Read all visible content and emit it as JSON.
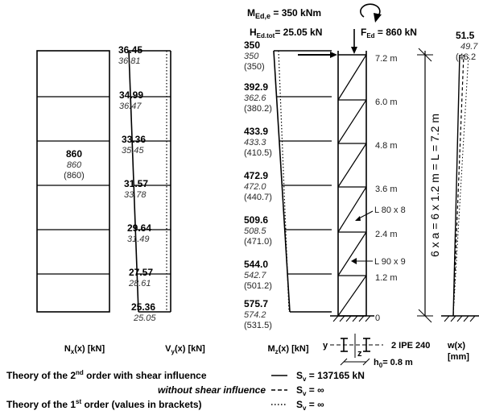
{
  "top_loads": {
    "moment_label": "M",
    "moment_sub": "Ed,e",
    "moment_value": " = 350 kNm",
    "h_label": "H",
    "h_sub": "Ed.tot",
    "h_value": "= 25.05 kN",
    "f_label": "F",
    "f_sub": "Ed",
    "f_value": " = 860 kN"
  },
  "normal_force": {
    "value_bold": "860",
    "value_italic": "860",
    "value_bracket": "(860)",
    "axis_label": "N",
    "axis_sub": "x",
    "axis_unit": "(x) [kN]"
  },
  "shear": {
    "axis_label": "V",
    "axis_sub": "y",
    "axis_unit": "(x) [kN]",
    "values": [
      {
        "bold": "36.45",
        "italic": "36.81"
      },
      {
        "bold": "34.99",
        "italic": "36.47"
      },
      {
        "bold": "33.36",
        "italic": "35.45"
      },
      {
        "bold": "31.57",
        "italic": "33.78"
      },
      {
        "bold": "29.64",
        "italic": "31.49"
      },
      {
        "bold": "27.57",
        "italic": "28.61"
      },
      {
        "bold": "25.36",
        "italic": "25.05"
      }
    ]
  },
  "moment": {
    "axis_label": "M",
    "axis_sub": "z",
    "axis_unit": "(x) [kN]",
    "values": [
      {
        "bold": "350",
        "italic": "350",
        "bracket": "(350)"
      },
      {
        "bold": "392.9",
        "italic": "362.6",
        "bracket": "(380.2)"
      },
      {
        "bold": "433.9",
        "italic": "433.3",
        "bracket": "(410.5)"
      },
      {
        "bold": "472.9",
        "italic": "472.0",
        "bracket": "(440.7)"
      },
      {
        "bold": "509.6",
        "italic": "508.5",
        "bracket": "(471.0)"
      },
      {
        "bold": "544.0",
        "italic": "542.7",
        "bracket": "(501.2)"
      },
      {
        "bold": "575.7",
        "italic": "574.2",
        "bracket": "(531.5)"
      }
    ]
  },
  "structure": {
    "heights": [
      "7.2 m",
      "6.0 m",
      "4.8 m",
      "3.6 m",
      "2.4 m",
      "1.2 m",
      "0"
    ],
    "member_upper": "L 80 x 8",
    "member_lower": "L 90 x 9",
    "dimension": "6 x a = 6 x 1.2 m = L = 7.2 m",
    "section_label": "2 IPE 240",
    "section_y": "y",
    "section_z": "z",
    "h0_label": "h",
    "h0_sub": "0",
    "h0_value": "= 0.8 m"
  },
  "deflection": {
    "value_bold": "51.5",
    "value_italic": "49.7",
    "value_bracket": "(46.2",
    "axis_label": "w(x)",
    "axis_unit": "[mm]"
  },
  "legend": {
    "line1_text": "Theory of the 2",
    "line1_sup": "nd",
    "line1_rest": " order with shear influence",
    "line1_sv": "S",
    "line1_sv_sub": "v",
    "line1_sv_val": " = 137165 kN",
    "line2_text": "without shear influence",
    "line2_sv": "S",
    "line2_sv_sub": "v",
    "line2_sv_val": " = ∞",
    "line3_text": "Theory of the 1",
    "line3_sup": "st",
    "line3_rest": " order (values in brackets)",
    "line3_sv": "S",
    "line3_sv_sub": "v",
    "line3_sv_val": " = ∞"
  }
}
